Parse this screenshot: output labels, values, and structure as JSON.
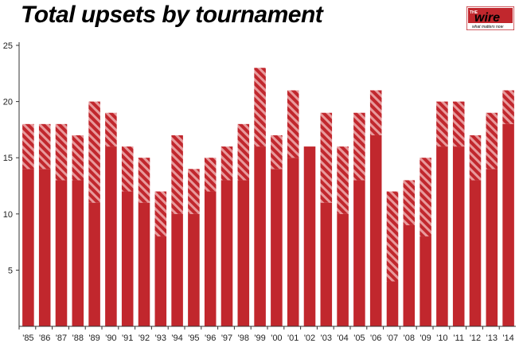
{
  "title": "Total upsets by tournament",
  "logo": {
    "top_text": "THE",
    "main_text": "wire",
    "tagline": "what matters now"
  },
  "colors": {
    "bar": "#c1272d",
    "stripe_light": "#e89a9c",
    "axis": "#333333"
  },
  "chart_data": {
    "type": "bar",
    "stacked": true,
    "title": "Total upsets by tournament",
    "xlabel": "",
    "ylabel": "",
    "ylim": [
      0,
      25
    ],
    "yticks": [
      5,
      10,
      15,
      20,
      25
    ],
    "grid": false,
    "categories": [
      "'85",
      "'86",
      "'87",
      "'88",
      "'89",
      "'90",
      "'91",
      "'92",
      "'93",
      "'94",
      "'95",
      "'96",
      "'97",
      "'98",
      "'99",
      "'00",
      "'01",
      "'02",
      "'03",
      "'04",
      "'05",
      "'06",
      "'07",
      "'08",
      "'09",
      "'10",
      "'11",
      "'12",
      "'13",
      "'14"
    ],
    "series": [
      {
        "values": [
          14,
          14,
          13,
          13,
          11,
          16,
          12,
          11,
          8,
          10,
          10,
          12,
          13,
          13,
          16,
          14,
          15,
          16,
          11,
          10,
          13,
          17,
          4,
          9,
          8,
          16,
          16,
          13,
          14,
          18
        ]
      },
      {
        "values": [
          4,
          4,
          5,
          4,
          9,
          3,
          4,
          4,
          4,
          7,
          4,
          3,
          3,
          5,
          7,
          3,
          6,
          0,
          8,
          6,
          6,
          4,
          8,
          4,
          7,
          4,
          4,
          4,
          5,
          3
        ]
      }
    ]
  }
}
